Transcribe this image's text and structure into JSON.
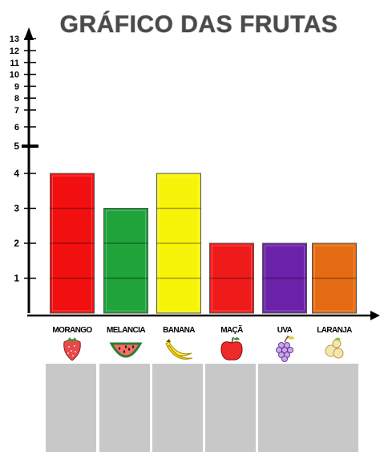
{
  "chart_data": {
    "type": "bar",
    "title": "GRÁFICO DAS FRUTAS",
    "categories": [
      "MORANGO",
      "MELANCIA",
      "BANANA",
      "MAÇÃ",
      "UVA",
      "LARANJA"
    ],
    "values": [
      4,
      3,
      4,
      2,
      2,
      2
    ],
    "colors": [
      "#f20f0f",
      "#1fa33a",
      "#f7f40a",
      "#ef1a1a",
      "#6b22a8",
      "#e56b12"
    ],
    "icons": [
      "strawberry-icon",
      "watermelon-icon",
      "banana-icon",
      "apple-icon",
      "grape-icon",
      "orange-icon"
    ],
    "y_ticks": [
      1,
      2,
      3,
      4,
      5,
      6,
      7,
      8,
      9,
      10,
      11,
      12,
      13
    ],
    "ylim": [
      0,
      13
    ],
    "grid": false
  },
  "answer_boxes": 6
}
